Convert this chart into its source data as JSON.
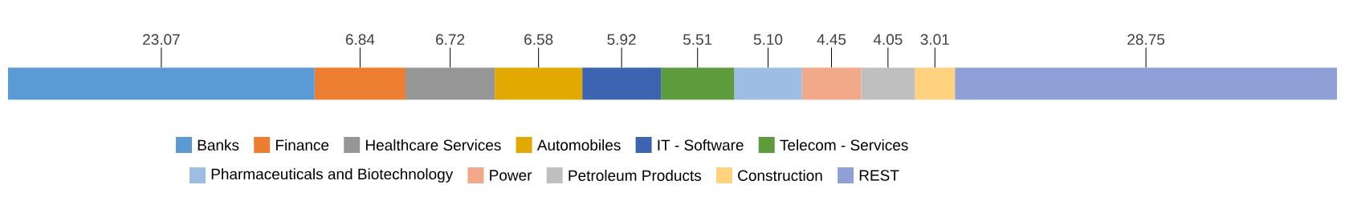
{
  "chart_data": {
    "type": "bar",
    "orientation": "horizontal",
    "stacked": true,
    "categories": [
      null
    ],
    "xlim": [
      0,
      100
    ],
    "legend": "bottom",
    "series": [
      {
        "name": "Banks",
        "color": "#5b9bd5",
        "values": [
          23.07
        ],
        "value_labels": [
          "23.07"
        ]
      },
      {
        "name": "Finance",
        "color": "#ed7d31",
        "values": [
          6.84
        ],
        "value_labels": [
          "6.84"
        ]
      },
      {
        "name": "Healthcare Services",
        "color": "#969696",
        "values": [
          6.72
        ],
        "value_labels": [
          "6.72"
        ]
      },
      {
        "name": "Automobiles",
        "color": "#e2aa00",
        "values": [
          6.58
        ],
        "value_labels": [
          "6.58"
        ]
      },
      {
        "name": "IT - Software",
        "color": "#3c64b0",
        "values": [
          5.92
        ],
        "value_labels": [
          "5.92"
        ]
      },
      {
        "name": "Telecom - Services",
        "color": "#5e9b3c",
        "values": [
          5.51
        ],
        "value_labels": [
          "5.51"
        ]
      },
      {
        "name": "Pharmaceuticals and Biotechnology",
        "color": "#9dbde3",
        "values": [
          5.1
        ],
        "value_labels": [
          "5.10"
        ]
      },
      {
        "name": "Power",
        "color": "#f2a98a",
        "values": [
          4.45
        ],
        "value_labels": [
          "4.45"
        ]
      },
      {
        "name": "Petroleum Products",
        "color": "#bfbfbf",
        "values": [
          4.05
        ],
        "value_labels": [
          "4.05"
        ]
      },
      {
        "name": "Construction",
        "color": "#ffd280",
        "values": [
          3.01
        ],
        "value_labels": [
          "3.01"
        ]
      },
      {
        "name": "REST",
        "color": "#8fa0d6",
        "values": [
          28.75
        ],
        "value_labels": [
          "28.75"
        ]
      }
    ]
  }
}
